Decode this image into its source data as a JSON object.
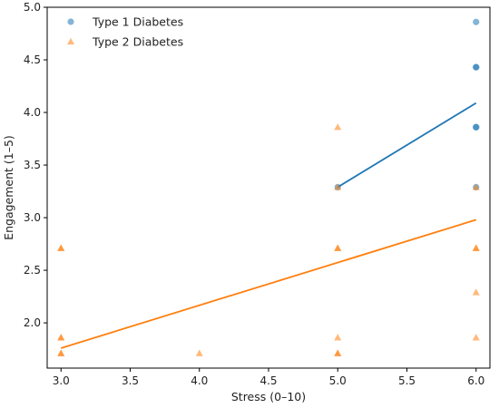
{
  "chart_data": {
    "type": "scatter",
    "xlabel": "Stress (0–10)",
    "ylabel": "Engagement (1–5)",
    "xlim": [
      2.9,
      6.1
    ],
    "ylim": [
      1.57,
      5.0
    ],
    "xticks": [
      "3.0",
      "3.5",
      "4.0",
      "4.5",
      "5.0",
      "5.5",
      "6.0"
    ],
    "yticks": [
      "2.0",
      "2.5",
      "3.0",
      "3.5",
      "4.0",
      "4.5",
      "5.0"
    ],
    "grid": false,
    "legend_position": "top-left",
    "series": [
      {
        "name": "Type 1 Diabetes",
        "marker": "circle",
        "color": "#1f77b4",
        "points": [
          {
            "x": 5.0,
            "y": 3.29
          },
          {
            "x": 6.0,
            "y": 4.86
          },
          {
            "x": 6.0,
            "y": 4.43
          },
          {
            "x": 6.0,
            "y": 4.43
          },
          {
            "x": 6.0,
            "y": 3.86
          },
          {
            "x": 6.0,
            "y": 3.86
          },
          {
            "x": 6.0,
            "y": 3.29
          }
        ],
        "fit_line": {
          "x": [
            5.0,
            6.0
          ],
          "y": [
            3.29,
            4.09
          ]
        }
      },
      {
        "name": "Type 2 Diabetes",
        "marker": "triangle",
        "color": "#ff7f0e",
        "points": [
          {
            "x": 3.0,
            "y": 2.71
          },
          {
            "x": 3.0,
            "y": 2.71
          },
          {
            "x": 3.0,
            "y": 1.86
          },
          {
            "x": 3.0,
            "y": 1.86
          },
          {
            "x": 3.0,
            "y": 1.71
          },
          {
            "x": 3.0,
            "y": 1.71
          },
          {
            "x": 4.0,
            "y": 1.71
          },
          {
            "x": 5.0,
            "y": 3.86
          },
          {
            "x": 5.0,
            "y": 3.29
          },
          {
            "x": 5.0,
            "y": 2.71
          },
          {
            "x": 5.0,
            "y": 2.71
          },
          {
            "x": 5.0,
            "y": 1.86
          },
          {
            "x": 5.0,
            "y": 1.71
          },
          {
            "x": 5.0,
            "y": 1.71
          },
          {
            "x": 6.0,
            "y": 3.29
          },
          {
            "x": 6.0,
            "y": 2.71
          },
          {
            "x": 6.0,
            "y": 2.71
          },
          {
            "x": 6.0,
            "y": 2.29
          },
          {
            "x": 6.0,
            "y": 1.86
          }
        ],
        "fit_line": {
          "x": [
            3.0,
            6.0
          ],
          "y": [
            1.76,
            2.98
          ]
        }
      }
    ]
  }
}
